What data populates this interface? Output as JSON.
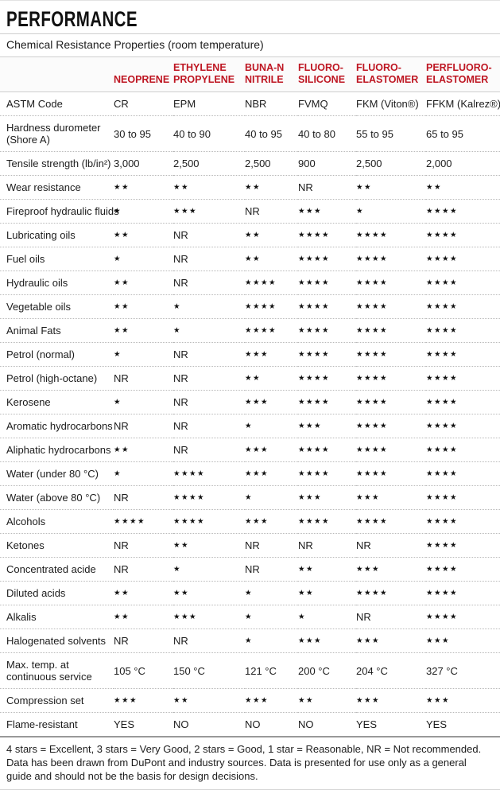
{
  "page": {
    "title": "PERFORMANCE",
    "subtitle": "Chemical Resistance Properties (room temperature)"
  },
  "colors": {
    "header_red": "#be1622",
    "text": "#1c1c1c",
    "rule_light": "#cfcfcf",
    "rule_dark": "#999999"
  },
  "table": {
    "columns": [
      "NEOPRENE",
      "ETHYLENE\nPROPYLENE",
      "BUNA-N\nNITRILE",
      "FLUORO-\nSILICONE",
      "FLUORO-\nELASTOMER",
      "PERFLUORO-\nELASTOMER"
    ],
    "rows": [
      {
        "label": "ASTM Code",
        "values": [
          "CR",
          "EPM",
          "NBR",
          "FVMQ",
          "FKM (Viton®)",
          "FFKM (Kalrez®)"
        ]
      },
      {
        "label": "Hardness durometer\n(Shore A)",
        "values": [
          "30 to 95",
          "40 to 90",
          "40 to 95",
          "40 to 80",
          "55 to 95",
          "65 to 95"
        ]
      },
      {
        "label": "Tensile strength (lb/in²)",
        "values": [
          "3,000",
          "2,500",
          "2,500",
          "900",
          "2,500",
          "2,000"
        ]
      },
      {
        "label": "Wear resistance",
        "values": [
          "★★",
          "★★",
          "★★",
          "NR",
          "★★",
          "★★"
        ]
      },
      {
        "label": "Fireproof hydraulic fluids",
        "values": [
          "★",
          "★★★",
          "NR",
          "★★★",
          "★",
          "★★★★"
        ]
      },
      {
        "label": "Lubricating oils",
        "values": [
          "★★",
          "NR",
          "★★",
          "★★★★",
          "★★★★",
          "★★★★"
        ]
      },
      {
        "label": "Fuel oils",
        "values": [
          "★",
          "NR",
          "★★",
          "★★★★",
          "★★★★",
          "★★★★"
        ]
      },
      {
        "label": "Hydraulic oils",
        "values": [
          "★★",
          "NR",
          "★★★★",
          "★★★★",
          "★★★★",
          "★★★★"
        ]
      },
      {
        "label": "Vegetable oils",
        "values": [
          "★★",
          "★",
          "★★★★",
          "★★★★",
          "★★★★",
          "★★★★"
        ]
      },
      {
        "label": "Animal Fats",
        "values": [
          "★★",
          "★",
          "★★★★",
          "★★★★",
          "★★★★",
          "★★★★"
        ]
      },
      {
        "label": "Petrol (normal)",
        "values": [
          "★",
          "NR",
          "★★★",
          "★★★★",
          "★★★★",
          "★★★★"
        ]
      },
      {
        "label": "Petrol (high-octane)",
        "values": [
          "NR",
          "NR",
          "★★",
          "★★★★",
          "★★★★",
          "★★★★"
        ]
      },
      {
        "label": "Kerosene",
        "values": [
          "★",
          "NR",
          "★★★",
          "★★★★",
          "★★★★",
          "★★★★"
        ]
      },
      {
        "label": "Aromatic hydrocarbons",
        "values": [
          "NR",
          "NR",
          "★",
          "★★★",
          "★★★★",
          "★★★★"
        ]
      },
      {
        "label": "Aliphatic hydrocarbons",
        "values": [
          "★★",
          "NR",
          "★★★",
          "★★★★",
          "★★★★",
          "★★★★"
        ]
      },
      {
        "label": "Water (under 80 °C)",
        "values": [
          "★",
          "★★★★",
          "★★★",
          "★★★★",
          "★★★★",
          "★★★★"
        ]
      },
      {
        "label": "Water (above 80 °C)",
        "values": [
          "NR",
          "★★★★",
          "★",
          "★★★",
          "★★★",
          "★★★★"
        ]
      },
      {
        "label": "Alcohols",
        "values": [
          "★★★★",
          "★★★★",
          "★★★",
          "★★★★",
          "★★★★",
          "★★★★"
        ]
      },
      {
        "label": "Ketones",
        "values": [
          "NR",
          "★★",
          "NR",
          "NR",
          "NR",
          "★★★★"
        ]
      },
      {
        "label": "Concentrated acide",
        "values": [
          "NR",
          "★",
          "NR",
          "★★",
          "★★★",
          "★★★★"
        ]
      },
      {
        "label": "Diluted acids",
        "values": [
          "★★",
          "★★",
          "★",
          "★★",
          "★★★★",
          "★★★★"
        ]
      },
      {
        "label": "Alkalis",
        "values": [
          "★★",
          "★★★",
          "★",
          "★",
          "NR",
          "★★★★"
        ]
      },
      {
        "label": "Halogenated solvents",
        "values": [
          "NR",
          "NR",
          "★",
          "★★★",
          "★★★",
          "★★★"
        ]
      },
      {
        "label": "Max. temp. at\ncontinuous service",
        "values": [
          "105 °C",
          "150 °C",
          "121 °C",
          "200 °C",
          "204 °C",
          "327 °C"
        ]
      },
      {
        "label": "Compression set",
        "values": [
          "★★★",
          "★★",
          "★★★",
          "★★",
          "★★★",
          "★★★"
        ]
      },
      {
        "label": "Flame-resistant",
        "values": [
          "YES",
          "NO",
          "NO",
          "NO",
          "YES",
          "YES"
        ]
      }
    ]
  },
  "footer": {
    "legend": "4 stars = Excellent, 3 stars = Very Good, 2 stars = Good, 1 star = Reasonable, NR = Not recommended.",
    "disclaimer": "Data has been drawn from DuPont and industry sources. Data is presented for use only as a general guide and should not be the basis for design decisions."
  }
}
